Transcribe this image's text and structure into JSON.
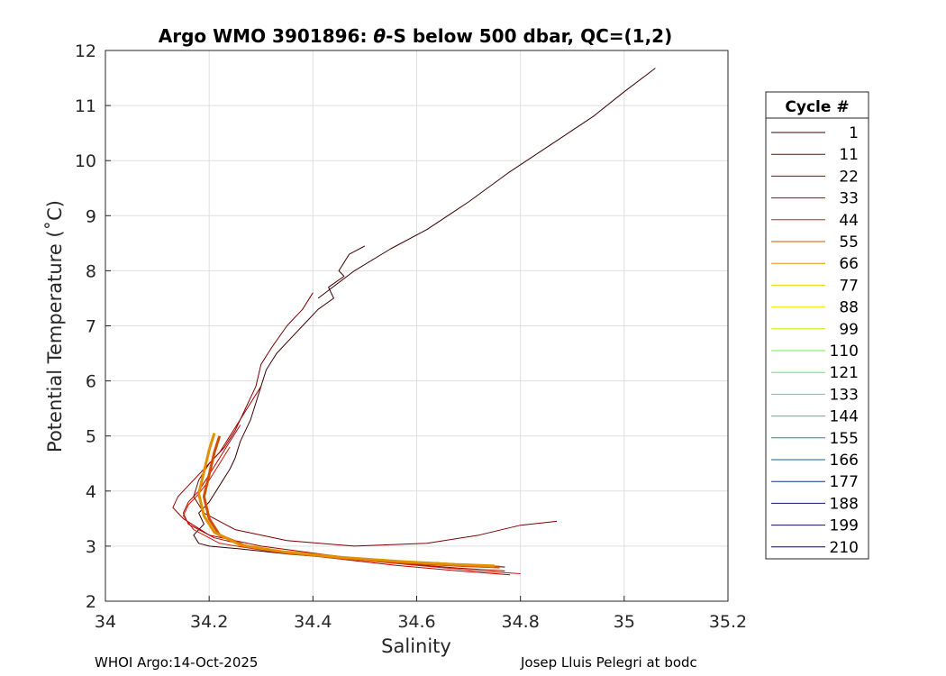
{
  "chart_data": {
    "type": "line",
    "title_prefix": "Argo WMO 3901896: ",
    "title_theta": "θ",
    "title_suffix": "-S below 500 dbar,  QC=(1,2)",
    "xlabel": "Salinity",
    "ylabel": "Potential Temperature (˚C)",
    "xlim": [
      34,
      35.2
    ],
    "ylim": [
      2,
      12
    ],
    "xticks": [
      34,
      34.2,
      34.4,
      34.6,
      34.8,
      35,
      35.2
    ],
    "xtick_labels": [
      "34",
      "34.2",
      "34.4",
      "34.6",
      "34.8",
      "35",
      "35.2"
    ],
    "yticks": [
      2,
      3,
      4,
      5,
      6,
      7,
      8,
      9,
      10,
      11,
      12
    ],
    "ytick_labels": [
      "2",
      "3",
      "4",
      "5",
      "6",
      "7",
      "8",
      "9",
      "10",
      "11",
      "12"
    ],
    "grid": true,
    "legend": {
      "title": "Cycle #",
      "placement": "outside-right",
      "entries": [
        {
          "label": "1",
          "color": "#3a0000"
        },
        {
          "label": "11",
          "color": "#7a0000"
        },
        {
          "label": "22",
          "color": "#a00000"
        },
        {
          "label": "33",
          "color": "#b80000"
        },
        {
          "label": "44",
          "color": "#c81e00"
        },
        {
          "label": "55",
          "color": "#d05000"
        },
        {
          "label": "66",
          "color": "#e09000"
        },
        {
          "label": "77",
          "color": "#f0d000"
        },
        {
          "label": "88",
          "color": "#f5f000"
        },
        {
          "label": "99",
          "color": "#c0f000"
        },
        {
          "label": "110",
          "color": "#70f040"
        },
        {
          "label": "121",
          "color": "#40f080"
        },
        {
          "label": "133",
          "color": "#30e0c0"
        },
        {
          "label": "144",
          "color": "#20c0d0"
        },
        {
          "label": "155",
          "color": "#1090b0"
        },
        {
          "label": "166",
          "color": "#106090"
        },
        {
          "label": "177",
          "color": "#103080"
        },
        {
          "label": "188",
          "color": "#101870"
        },
        {
          "label": "199",
          "color": "#101050"
        },
        {
          "label": "210",
          "color": "#0a0a3a"
        }
      ]
    },
    "series": [
      {
        "name": "cycle 1 (deep branch)",
        "color": "#3a0000",
        "x": [
          34.5,
          34.47,
          34.45,
          34.46,
          34.43,
          34.44,
          34.41,
          34.38,
          34.36,
          34.33,
          34.31,
          34.3,
          34.29,
          34.28,
          34.27,
          34.26,
          34.25,
          34.24,
          34.22,
          34.2,
          34.18,
          34.19,
          34.17,
          34.18,
          34.2,
          34.26,
          34.36,
          34.5,
          34.64,
          34.72,
          34.77
        ],
        "y": [
          8.45,
          8.3,
          8.0,
          7.9,
          7.7,
          7.5,
          7.3,
          7.0,
          6.8,
          6.5,
          6.2,
          5.9,
          5.6,
          5.3,
          5.1,
          4.9,
          4.6,
          4.4,
          4.1,
          3.8,
          3.6,
          3.4,
          3.2,
          3.05,
          3.0,
          2.95,
          2.85,
          2.75,
          2.7,
          2.65,
          2.62
        ]
      },
      {
        "name": "cycle 1 (shallow branch)",
        "color": "#3a0000",
        "x": [
          34.41,
          34.48,
          34.55,
          34.62,
          34.7,
          34.78,
          34.86,
          34.94,
          35.0,
          35.06
        ],
        "y": [
          7.5,
          8.0,
          8.4,
          8.75,
          9.25,
          9.8,
          10.3,
          10.8,
          11.25,
          11.68
        ]
      },
      {
        "name": "cycle 11",
        "color": "#7a0000",
        "x": [
          34.4,
          34.38,
          34.35,
          34.32,
          34.3,
          34.29,
          34.27,
          34.25,
          34.23,
          34.2,
          34.18,
          34.17,
          34.19,
          34.25,
          34.35,
          34.48,
          34.62,
          34.72,
          34.8,
          34.87
        ],
        "y": [
          7.6,
          7.3,
          7.0,
          6.6,
          6.3,
          5.9,
          5.5,
          5.1,
          4.8,
          4.5,
          4.2,
          3.9,
          3.6,
          3.3,
          3.1,
          3.0,
          3.05,
          3.2,
          3.38,
          3.45
        ]
      },
      {
        "name": "cycle 22",
        "color": "#a00000",
        "x": [
          34.3,
          34.28,
          34.26,
          34.24,
          34.22,
          34.19,
          34.16,
          34.14,
          34.13,
          34.15,
          34.2,
          34.3,
          34.42,
          34.55,
          34.68,
          34.77
        ],
        "y": [
          5.9,
          5.6,
          5.3,
          5.0,
          4.7,
          4.4,
          4.1,
          3.9,
          3.7,
          3.5,
          3.2,
          3.0,
          2.85,
          2.7,
          2.6,
          2.55
        ]
      },
      {
        "name": "cycle 33",
        "color": "#b80000",
        "x": [
          34.26,
          34.24,
          34.22,
          34.2,
          34.18,
          34.16,
          34.15,
          34.16,
          34.21,
          34.3,
          34.42,
          34.56,
          34.68,
          34.78
        ],
        "y": [
          5.2,
          4.9,
          4.6,
          4.3,
          4.0,
          3.8,
          3.6,
          3.4,
          3.15,
          2.95,
          2.8,
          2.65,
          2.55,
          2.48
        ]
      },
      {
        "name": "cycle 44",
        "color": "#c81e00",
        "x": [
          34.24,
          34.22,
          34.2,
          34.18,
          34.16,
          34.15,
          34.17,
          34.22,
          34.32,
          34.45,
          34.6,
          34.72,
          34.8
        ],
        "y": [
          4.8,
          4.5,
          4.2,
          3.95,
          3.75,
          3.55,
          3.3,
          3.05,
          2.9,
          2.78,
          2.65,
          2.55,
          2.5
        ]
      },
      {
        "name": "cycle 55",
        "color": "#d05000",
        "x": [
          34.22,
          34.21,
          34.2,
          34.19,
          34.2,
          34.22,
          34.27,
          34.35,
          34.46,
          34.58,
          34.68,
          34.76
        ],
        "y": [
          5.0,
          4.7,
          4.3,
          3.9,
          3.5,
          3.2,
          3.0,
          2.88,
          2.78,
          2.7,
          2.65,
          2.62
        ]
      },
      {
        "name": "cycle 66",
        "color": "#e09000",
        "x": [
          34.21,
          34.2,
          34.19,
          34.18,
          34.19,
          34.21,
          34.26,
          34.34,
          34.45,
          34.57,
          34.67,
          34.75
        ],
        "y": [
          5.05,
          4.75,
          4.35,
          3.95,
          3.55,
          3.25,
          3.02,
          2.9,
          2.8,
          2.72,
          2.67,
          2.64
        ]
      }
    ]
  },
  "footer": {
    "left": "WHOI Argo:14-Oct-2025",
    "right": "Josep Lluis Pelegri at bodc"
  }
}
